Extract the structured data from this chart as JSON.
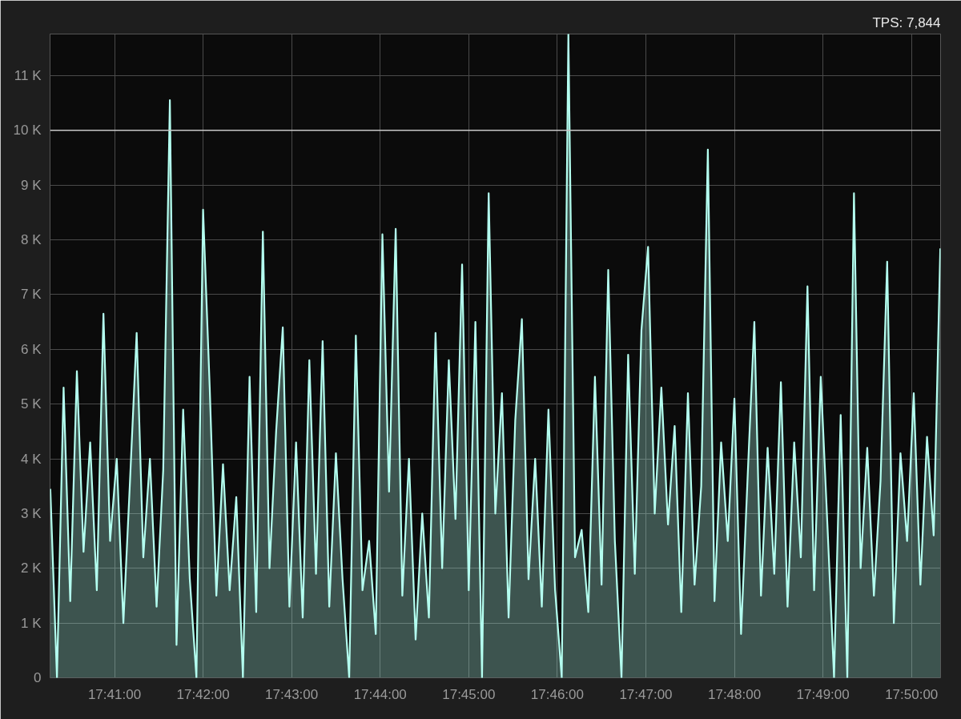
{
  "chart_data": {
    "type": "area",
    "title": "TPS: 7,844",
    "x": [
      17.67125,
      17.6725,
      17.67375,
      17.675,
      17.67625,
      17.6775,
      17.67875,
      17.68,
      17.68125,
      17.6825,
      17.68375,
      17.685,
      17.68625,
      17.6875,
      17.68875,
      17.69,
      17.69125,
      17.6925,
      17.69375,
      17.695,
      17.69625,
      17.6975,
      17.69875,
      17.7,
      17.70125,
      17.7025,
      17.70375,
      17.705,
      17.70625,
      17.7075,
      17.70875,
      17.71,
      17.71125,
      17.7125,
      17.71375,
      17.715,
      17.71625,
      17.7175,
      17.71875,
      17.72,
      17.72125,
      17.7225,
      17.72375,
      17.725,
      17.72625,
      17.7275,
      17.72875,
      17.73,
      17.73125,
      17.7325,
      17.73375,
      17.735,
      17.73625,
      17.7375,
      17.73875,
      17.74,
      17.74125,
      17.7425,
      17.74375,
      17.745,
      17.74625,
      17.7475,
      17.74875,
      17.75,
      17.75125,
      17.7525,
      17.75375,
      17.755,
      17.75625,
      17.7575,
      17.75875,
      17.76,
      17.76125,
      17.7625,
      17.76375,
      17.765,
      17.76625,
      17.7675,
      17.76875,
      17.77,
      17.77125,
      17.7725,
      17.77375,
      17.775,
      17.77625,
      17.7775,
      17.77875,
      17.78,
      17.78125,
      17.7825,
      17.78375,
      17.785,
      17.78625,
      17.7875,
      17.78875,
      17.79,
      17.79125,
      17.7925,
      17.79375,
      17.795,
      17.79625,
      17.7975,
      17.79875,
      17.8,
      17.80125,
      17.8025,
      17.80375,
      17.805,
      17.80625,
      17.8075,
      17.80875,
      17.81,
      17.81125,
      17.8125,
      17.81375,
      17.815,
      17.81625,
      17.8175,
      17.81875,
      17.82,
      17.82125,
      17.8225,
      17.82375,
      17.825,
      17.82625,
      17.8275,
      17.82875,
      17.83,
      17.83125,
      17.8325,
      17.83375,
      17.835,
      17.83625,
      17.8375,
      17.83875
    ],
    "series": [
      {
        "color": "#b4fff0",
        "values": [
          3450,
          0,
          5300,
          1400,
          5600,
          2300,
          4300,
          1600,
          6650,
          2500,
          4000,
          1000,
          3600,
          6300,
          2200,
          4000,
          1300,
          3800,
          10550,
          600,
          4900,
          1800,
          0,
          8550,
          5300,
          1500,
          3900,
          1600,
          3300,
          0,
          5500,
          1200,
          8150,
          2000,
          4500,
          6400,
          1300,
          4300,
          1100,
          5800,
          1900,
          6150,
          1300,
          4100,
          1800,
          0,
          6250,
          1600,
          2500,
          800,
          8100,
          3400,
          8200,
          1500,
          4000,
          700,
          3000,
          1100,
          6300,
          2000,
          5800,
          2900,
          7550,
          1600,
          6500,
          0,
          8850,
          3000,
          5200,
          1100,
          4700,
          6550,
          1800,
          4000,
          1300,
          4900,
          1600,
          0,
          11760,
          2200,
          2700,
          1200,
          5500,
          1700,
          7450,
          2500,
          0,
          5900,
          1900,
          6350,
          7870,
          3000,
          5300,
          2800,
          4600,
          1200,
          5200,
          1700,
          3500,
          9650,
          1400,
          4300,
          2500,
          5100,
          800,
          3700,
          6500,
          1500,
          4200,
          1900,
          5400,
          1300,
          4300,
          2200,
          7150,
          1600,
          5500,
          2800,
          0,
          4800,
          0,
          8850,
          2000,
          4200,
          1500,
          3600,
          7600,
          1000,
          4100,
          2500,
          5200,
          1700,
          4400,
          2600,
          7844
        ]
      }
    ],
    "xlim": [
      17.6712,
      17.8388
    ],
    "ylim": [
      0,
      11760
    ],
    "xticks": [
      {
        "value": 17.683333,
        "label": "17:41:00"
      },
      {
        "value": 17.7,
        "label": "17:42:00"
      },
      {
        "value": 17.716667,
        "label": "17:43:00"
      },
      {
        "value": 17.733333,
        "label": "17:44:00"
      },
      {
        "value": 17.75,
        "label": "17:45:00"
      },
      {
        "value": 17.766667,
        "label": "17:46:00"
      },
      {
        "value": 17.783333,
        "label": "17:47:00"
      },
      {
        "value": 17.8,
        "label": "17:48:00"
      },
      {
        "value": 17.816667,
        "label": "17:49:00"
      },
      {
        "value": 17.833333,
        "label": "17:50:00"
      }
    ],
    "yticks": [
      0,
      {
        "value": 1000,
        "label": "1 K"
      },
      {
        "value": 2000,
        "label": "2 K"
      },
      {
        "value": 3000,
        "label": "3 K"
      },
      {
        "value": 4000,
        "label": "4 K"
      },
      {
        "value": 5000,
        "label": "5 K"
      },
      {
        "value": 6000,
        "label": "6 K"
      },
      {
        "value": 7000,
        "label": "7 K"
      },
      {
        "value": 8000,
        "label": "8 K"
      },
      {
        "value": 9000,
        "label": "9 K"
      },
      {
        "value": 10000,
        "label": "10 K"
      },
      {
        "value": 11000,
        "label": "11 K"
      }
    ],
    "ref_lines": [
      {
        "axis": "y",
        "value": 10000,
        "color": "#c8c8c8"
      }
    ],
    "grid": true,
    "marker": "none",
    "line_style": "solid"
  }
}
